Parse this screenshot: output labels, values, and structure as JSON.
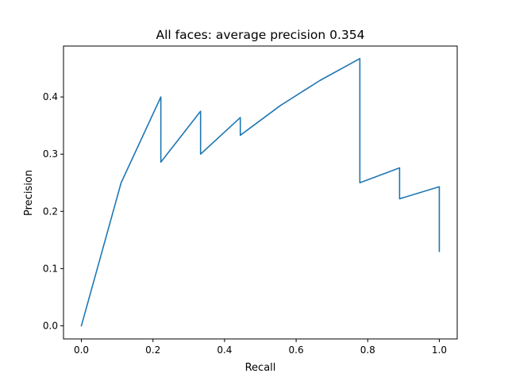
{
  "chart_data": {
    "type": "line",
    "title": "All faces: average precision 0.354",
    "xlabel": "Recall",
    "ylabel": "Precision",
    "xlim": [
      -0.05,
      1.05
    ],
    "ylim": [
      -0.023,
      0.489
    ],
    "xticks": [
      0.0,
      0.2,
      0.4,
      0.6,
      0.8,
      1.0
    ],
    "xtick_labels": [
      "0.0",
      "0.2",
      "0.4",
      "0.6",
      "0.8",
      "1.0"
    ],
    "yticks": [
      0.0,
      0.1,
      0.2,
      0.3,
      0.4
    ],
    "ytick_labels": [
      "0.0",
      "0.1",
      "0.2",
      "0.3",
      "0.4"
    ],
    "grid": false,
    "legend": "none",
    "series": [
      {
        "color": "#1f77b4",
        "x": [
          0.0,
          0.111,
          0.222,
          0.222,
          0.333,
          0.333,
          0.444,
          0.444,
          0.556,
          0.667,
          0.778,
          0.778,
          0.889,
          0.889,
          1.0,
          1.0
        ],
        "y": [
          0.0,
          0.25,
          0.4,
          0.286,
          0.375,
          0.3,
          0.364,
          0.333,
          0.385,
          0.429,
          0.467,
          0.25,
          0.276,
          0.222,
          0.243,
          0.13
        ]
      }
    ]
  }
}
